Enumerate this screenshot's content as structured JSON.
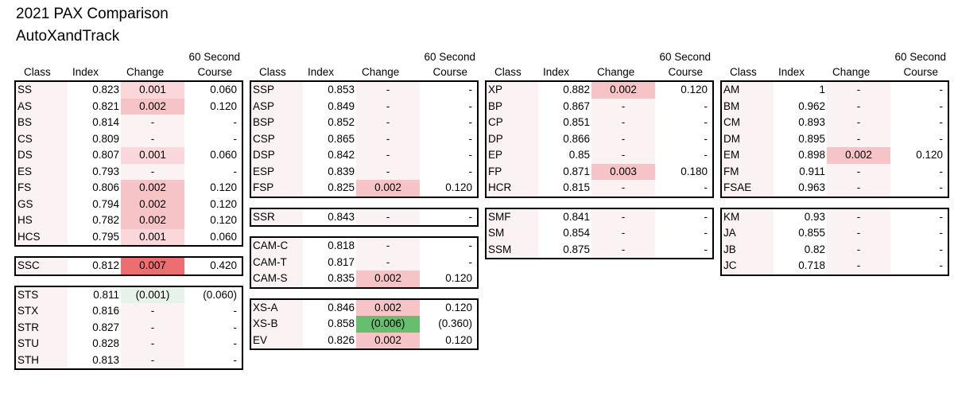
{
  "title": "2021 PAX Comparison",
  "subtitle": "AutoXandTrack",
  "headers": {
    "class": "Class",
    "index": "Index",
    "change": "Change",
    "course_top": "60 Second",
    "course_bottom": "Course"
  },
  "colors": {
    "up_light": "#f9d7da",
    "up_medium": "#f6c4c6",
    "up_strong": "#ec6e70",
    "down_light": "#e7f2ea",
    "down_strong": "#67be6f",
    "neutral": "#fbf2f3"
  },
  "columns": [
    {
      "blocks": [
        {
          "rows": [
            {
              "class": "SS",
              "index": "0.823",
              "change": "0.001",
              "course": "0.060",
              "level": "up_light"
            },
            {
              "class": "AS",
              "index": "0.821",
              "change": "0.002",
              "course": "0.120",
              "level": "up_medium"
            },
            {
              "class": "BS",
              "index": "0.814",
              "change": "-",
              "course": "-",
              "level": "neutral"
            },
            {
              "class": "CS",
              "index": "0.809",
              "change": "-",
              "course": "-",
              "level": "neutral"
            },
            {
              "class": "DS",
              "index": "0.807",
              "change": "0.001",
              "course": "0.060",
              "level": "up_light"
            },
            {
              "class": "ES",
              "index": "0.793",
              "change": "-",
              "course": "-",
              "level": "neutral"
            },
            {
              "class": "FS",
              "index": "0.806",
              "change": "0.002",
              "course": "0.120",
              "level": "up_medium"
            },
            {
              "class": "GS",
              "index": "0.794",
              "change": "0.002",
              "course": "0.120",
              "level": "up_medium"
            },
            {
              "class": "HS",
              "index": "0.782",
              "change": "0.002",
              "course": "0.120",
              "level": "up_medium"
            },
            {
              "class": "HCS",
              "index": "0.795",
              "change": "0.001",
              "course": "0.060",
              "level": "up_light"
            }
          ]
        },
        {
          "rows": [
            {
              "class": "SSC",
              "index": "0.812",
              "change": "0.007",
              "course": "0.420",
              "level": "up_strong"
            }
          ]
        },
        {
          "rows": [
            {
              "class": "STS",
              "index": "0.811",
              "change": "(0.001)",
              "course": "(0.060)",
              "level": "down_light"
            },
            {
              "class": "STX",
              "index": "0.816",
              "change": "-",
              "course": "-",
              "level": "neutral"
            },
            {
              "class": "STR",
              "index": "0.827",
              "change": "-",
              "course": "-",
              "level": "neutral"
            },
            {
              "class": "STU",
              "index": "0.828",
              "change": "-",
              "course": "-",
              "level": "neutral"
            },
            {
              "class": "STH",
              "index": "0.813",
              "change": "-",
              "course": "-",
              "level": "neutral"
            }
          ]
        }
      ]
    },
    {
      "blocks": [
        {
          "rows": [
            {
              "class": "SSP",
              "index": "0.853",
              "change": "-",
              "course": "-",
              "level": "neutral"
            },
            {
              "class": "ASP",
              "index": "0.849",
              "change": "-",
              "course": "-",
              "level": "neutral"
            },
            {
              "class": "BSP",
              "index": "0.852",
              "change": "-",
              "course": "-",
              "level": "neutral"
            },
            {
              "class": "CSP",
              "index": "0.865",
              "change": "-",
              "course": "-",
              "level": "neutral"
            },
            {
              "class": "DSP",
              "index": "0.842",
              "change": "-",
              "course": "-",
              "level": "neutral"
            },
            {
              "class": "ESP",
              "index": "0.839",
              "change": "-",
              "course": "-",
              "level": "neutral"
            },
            {
              "class": "FSP",
              "index": "0.825",
              "change": "0.002",
              "course": "0.120",
              "level": "up_medium"
            }
          ]
        },
        {
          "rows": [
            {
              "class": "SSR",
              "index": "0.843",
              "change": "-",
              "course": "-",
              "level": "neutral"
            }
          ]
        },
        {
          "rows": [
            {
              "class": "CAM-C",
              "index": "0.818",
              "change": "-",
              "course": "-",
              "level": "neutral"
            },
            {
              "class": "CAM-T",
              "index": "0.817",
              "change": "-",
              "course": "-",
              "level": "neutral"
            },
            {
              "class": "CAM-S",
              "index": "0.835",
              "change": "0.002",
              "course": "0.120",
              "level": "up_medium"
            }
          ]
        },
        {
          "rows": [
            {
              "class": "XS-A",
              "index": "0.846",
              "change": "0.002",
              "course": "0.120",
              "level": "up_medium"
            },
            {
              "class": "XS-B",
              "index": "0.858",
              "change": "(0.006)",
              "course": "(0.360)",
              "level": "down_strong"
            },
            {
              "class": "EV",
              "index": "0.826",
              "change": "0.002",
              "course": "0.120",
              "level": "up_medium"
            }
          ]
        }
      ]
    },
    {
      "blocks": [
        {
          "rows": [
            {
              "class": "XP",
              "index": "0.882",
              "change": "0.002",
              "course": "0.120",
              "level": "up_medium"
            },
            {
              "class": "BP",
              "index": "0.867",
              "change": "-",
              "course": "-",
              "level": "neutral"
            },
            {
              "class": "CP",
              "index": "0.851",
              "change": "-",
              "course": "-",
              "level": "neutral"
            },
            {
              "class": "DP",
              "index": "0.866",
              "change": "-",
              "course": "-",
              "level": "neutral"
            },
            {
              "class": "EP",
              "index": "0.85",
              "change": "-",
              "course": "-",
              "level": "neutral"
            },
            {
              "class": "FP",
              "index": "0.871",
              "change": "0.003",
              "course": "0.180",
              "level": "up_medium"
            },
            {
              "class": "HCR",
              "index": "0.815",
              "change": "-",
              "course": "-",
              "level": "neutral"
            }
          ]
        },
        {
          "rows": [
            {
              "class": "SMF",
              "index": "0.841",
              "change": "-",
              "course": "-",
              "level": "neutral"
            },
            {
              "class": "SM",
              "index": "0.854",
              "change": "-",
              "course": "-",
              "level": "neutral"
            },
            {
              "class": "SSM",
              "index": "0.875",
              "change": "-",
              "course": "-",
              "level": "neutral"
            }
          ]
        }
      ]
    },
    {
      "blocks": [
        {
          "rows": [
            {
              "class": "AM",
              "index": "1",
              "change": "-",
              "course": "-",
              "level": "neutral"
            },
            {
              "class": "BM",
              "index": "0.962",
              "change": "-",
              "course": "-",
              "level": "neutral"
            },
            {
              "class": "CM",
              "index": "0.893",
              "change": "-",
              "course": "-",
              "level": "neutral"
            },
            {
              "class": "DM",
              "index": "0.895",
              "change": "-",
              "course": "-",
              "level": "neutral"
            },
            {
              "class": "EM",
              "index": "0.898",
              "change": "0.002",
              "course": "0.120",
              "level": "up_medium"
            },
            {
              "class": "FM",
              "index": "0.911",
              "change": "-",
              "course": "-",
              "level": "neutral"
            },
            {
              "class": "FSAE",
              "index": "0.963",
              "change": "-",
              "course": "-",
              "level": "neutral"
            }
          ]
        },
        {
          "rows": [
            {
              "class": "KM",
              "index": "0.93",
              "change": "-",
              "course": "-",
              "level": "neutral"
            },
            {
              "class": "JA",
              "index": "0.855",
              "change": "-",
              "course": "-",
              "level": "neutral"
            },
            {
              "class": "JB",
              "index": "0.82",
              "change": "-",
              "course": "-",
              "level": "neutral"
            },
            {
              "class": "JC",
              "index": "0.718",
              "change": "-",
              "course": "-",
              "level": "neutral"
            }
          ]
        }
      ]
    }
  ]
}
